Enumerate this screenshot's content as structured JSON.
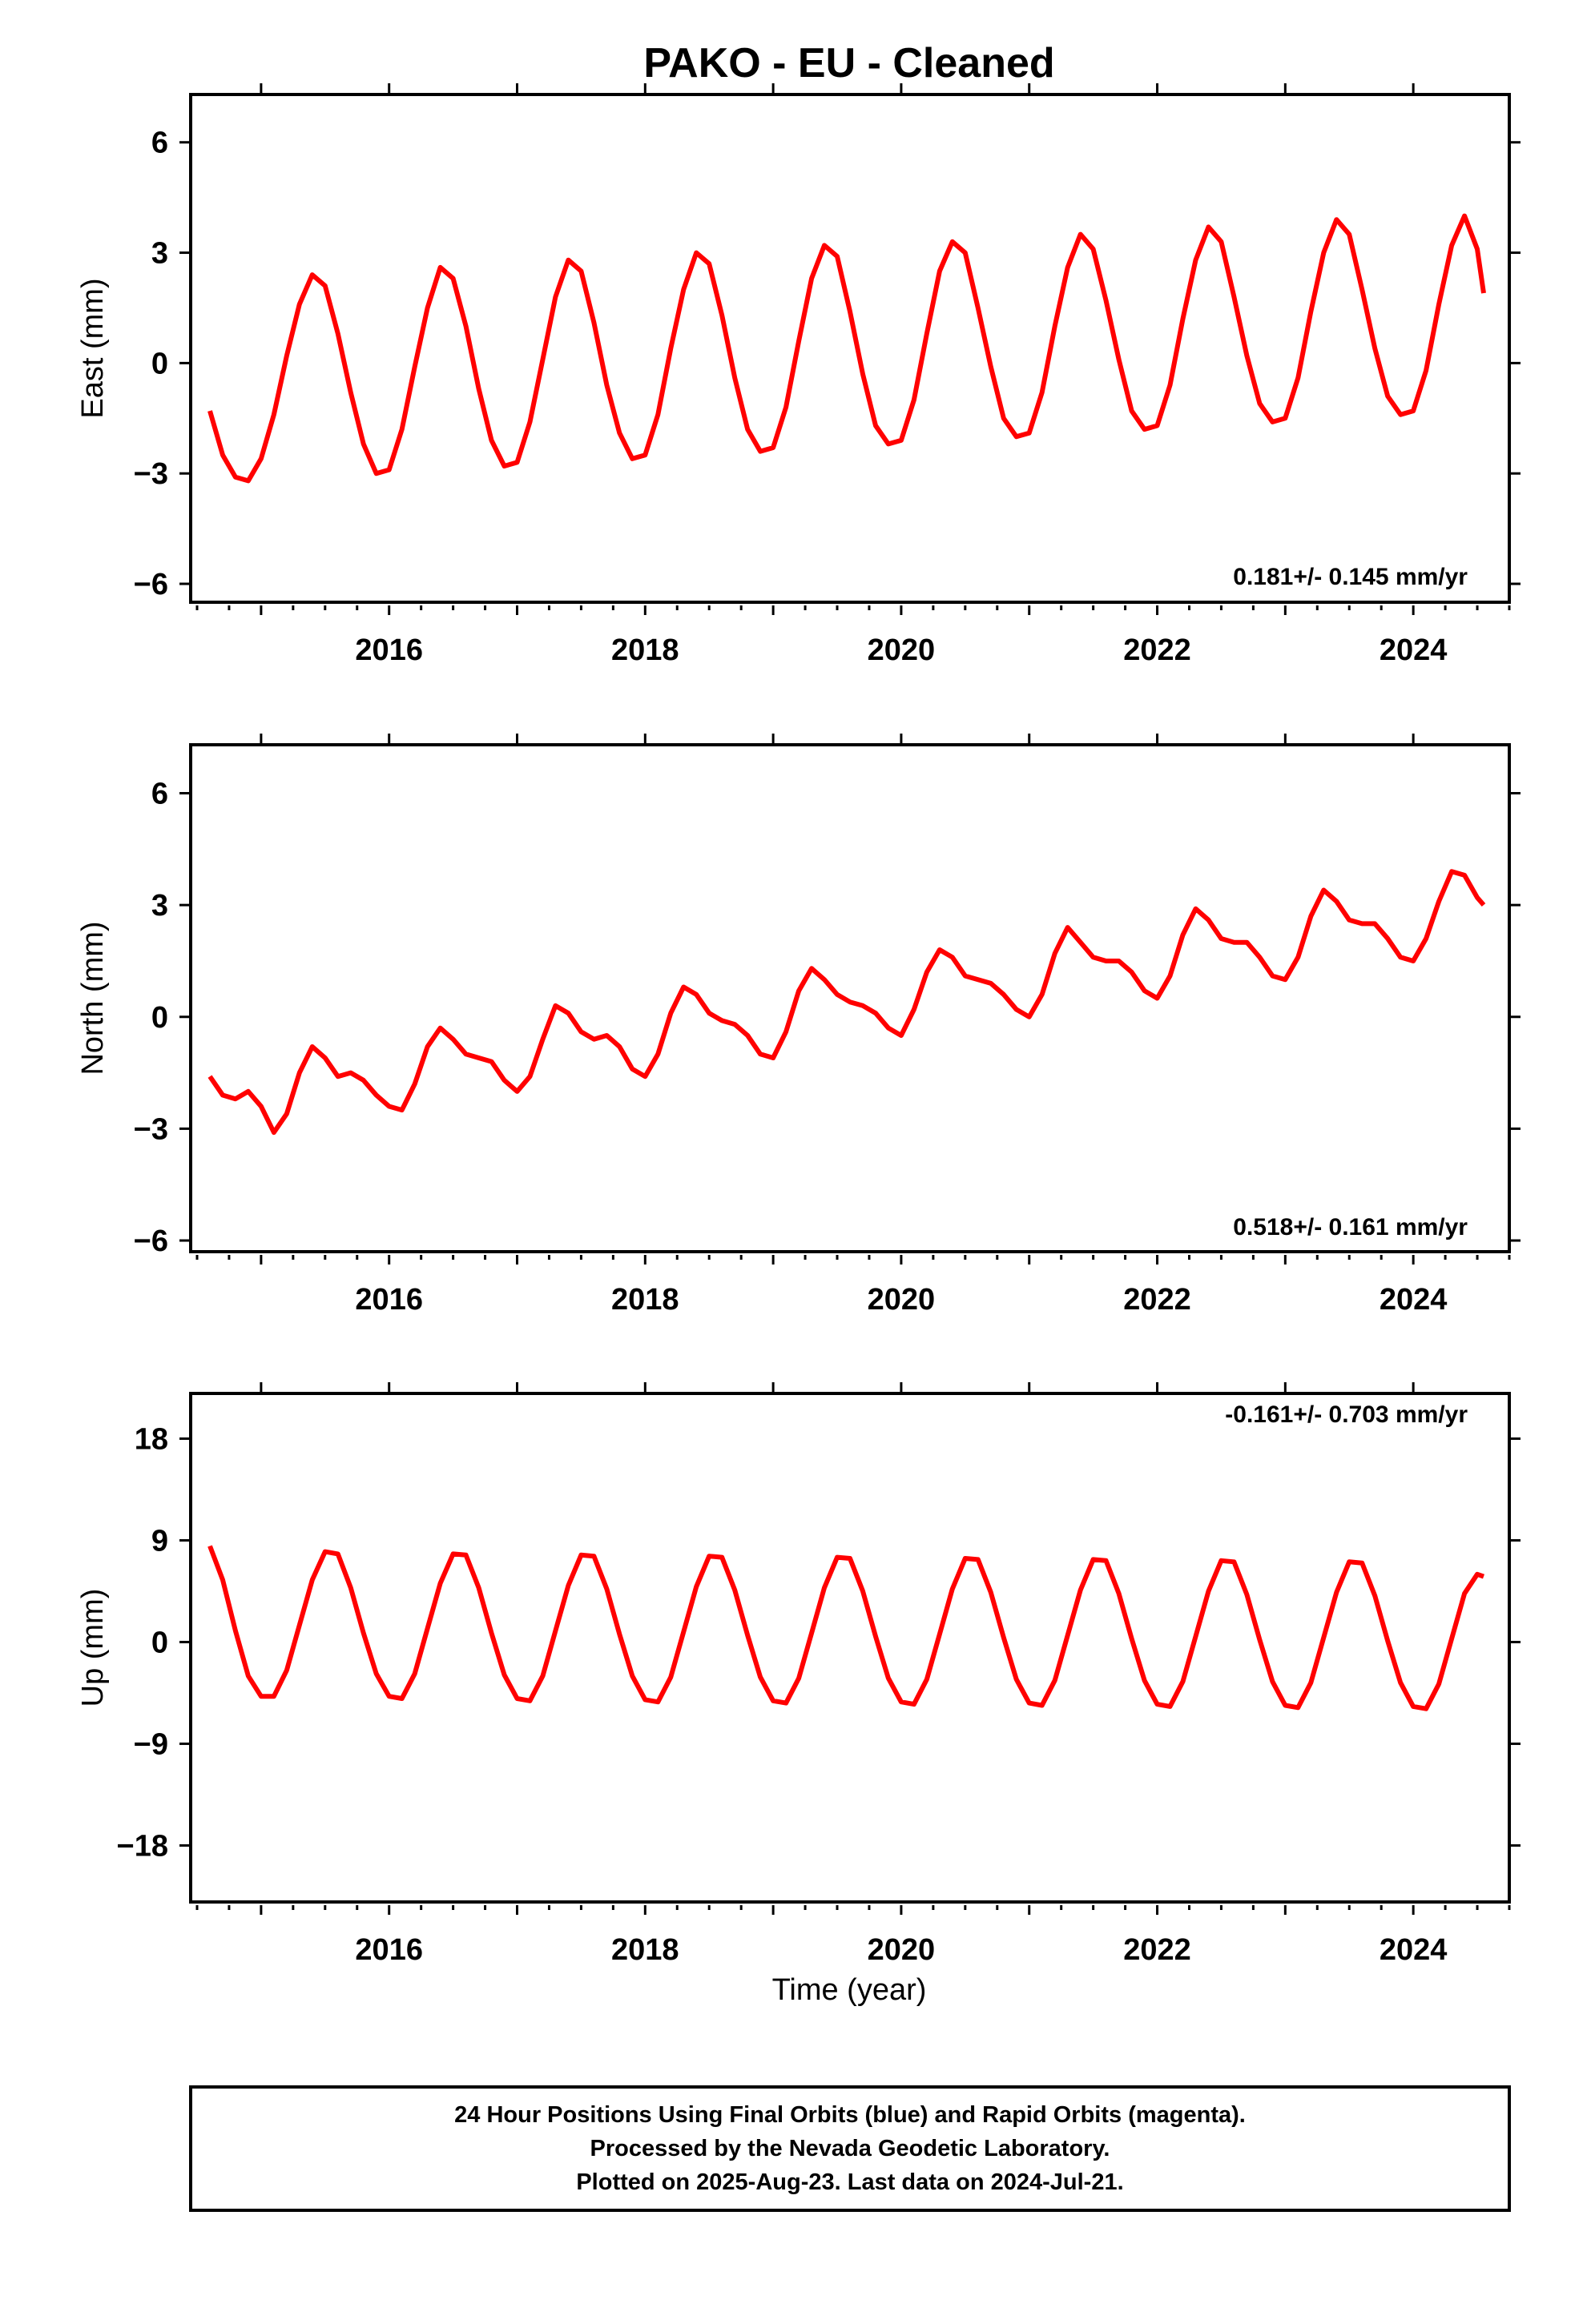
{
  "page": {
    "title": "PAKO  - EU - Cleaned",
    "xlabel": "Time (year)",
    "footer": [
      "24 Hour Positions Using Final Orbits (blue) and Rapid Orbits (magenta).",
      "Processed by the Nevada Geodetic Laboratory.",
      "Plotted on 2025-Aug-23. Last data on 2024-Jul-21."
    ]
  },
  "colors": {
    "points": "#0000ff",
    "model": "#ff0000",
    "frame": "#000000"
  },
  "chart_data": [
    {
      "type": "scatter",
      "component": "East",
      "ylabel": "East (mm)",
      "rate_label": "0.181+/- 0.145 mm/yr",
      "xlim": [
        2014.45,
        2024.75
      ],
      "ylim": [
        -6.5,
        7.3
      ],
      "yticks": [
        6,
        3,
        0,
        -3,
        -6
      ],
      "xticks": [
        2016,
        2018,
        2020,
        2022,
        2024
      ],
      "grid": false,
      "series": [
        {
          "role": "observations",
          "x": [],
          "y": []
        },
        {
          "role": "model fit",
          "x": [
            2014.6,
            2014.7,
            2014.8,
            2014.9,
            2015.0,
            2015.1,
            2015.2,
            2015.3,
            2015.4,
            2015.5,
            2015.6,
            2015.7,
            2015.8,
            2015.9,
            2016.0,
            2016.1,
            2016.2,
            2016.3,
            2016.4,
            2016.5,
            2016.6,
            2016.7,
            2016.8,
            2016.9,
            2017.0,
            2017.1,
            2017.2,
            2017.3,
            2017.4,
            2017.5,
            2017.6,
            2017.7,
            2017.8,
            2017.9,
            2018.0,
            2018.1,
            2018.2,
            2018.3,
            2018.4,
            2018.5,
            2018.6,
            2018.7,
            2018.8,
            2018.9,
            2019.0,
            2019.1,
            2019.2,
            2019.3,
            2019.4,
            2019.5,
            2019.6,
            2019.7,
            2019.8,
            2019.9,
            2020.0,
            2020.1,
            2020.2,
            2020.3,
            2020.4,
            2020.5,
            2020.6,
            2020.7,
            2020.8,
            2020.9,
            2021.0,
            2021.1,
            2021.2,
            2021.3,
            2021.4,
            2021.5,
            2021.6,
            2021.7,
            2021.8,
            2021.9,
            2022.0,
            2022.1,
            2022.2,
            2022.3,
            2022.4,
            2022.5,
            2022.6,
            2022.7,
            2022.8,
            2022.9,
            2023.0,
            2023.1,
            2023.2,
            2023.3,
            2023.4,
            2023.5,
            2023.6,
            2023.7,
            2023.8,
            2023.9,
            2024.0,
            2024.1,
            2024.2,
            2024.3,
            2024.4,
            2024.5,
            2024.55
          ],
          "y": [
            -1.3,
            -2.5,
            -3.1,
            -3.2,
            -2.6,
            -1.4,
            0.2,
            1.6,
            2.4,
            2.1,
            0.8,
            -0.8,
            -2.2,
            -3.0,
            -2.9,
            -1.8,
            -0.1,
            1.5,
            2.6,
            2.3,
            1.0,
            -0.7,
            -2.1,
            -2.8,
            -2.7,
            -1.6,
            0.1,
            1.8,
            2.8,
            2.5,
            1.1,
            -0.6,
            -1.9,
            -2.6,
            -2.5,
            -1.4,
            0.4,
            2.0,
            3.0,
            2.7,
            1.3,
            -0.4,
            -1.8,
            -2.4,
            -2.3,
            -1.2,
            0.6,
            2.3,
            3.2,
            2.9,
            1.4,
            -0.3,
            -1.7,
            -2.2,
            -2.1,
            -1.0,
            0.8,
            2.5,
            3.3,
            3.0,
            1.5,
            -0.1,
            -1.5,
            -2.0,
            -1.9,
            -0.8,
            1.0,
            2.6,
            3.5,
            3.1,
            1.7,
            0.1,
            -1.3,
            -1.8,
            -1.7,
            -0.6,
            1.2,
            2.8,
            3.7,
            3.3,
            1.8,
            0.2,
            -1.1,
            -1.6,
            -1.5,
            -0.4,
            1.4,
            3.0,
            3.9,
            3.5,
            2.0,
            0.4,
            -0.9,
            -1.4,
            -1.3,
            -0.2,
            1.6,
            3.2,
            4.0,
            3.1,
            1.9
          ]
        }
      ]
    },
    {
      "type": "scatter",
      "component": "North",
      "ylabel": "North (mm)",
      "rate_label": "0.518+/- 0.161 mm/yr",
      "xlim": [
        2014.45,
        2024.75
      ],
      "ylim": [
        -6.3,
        7.3
      ],
      "yticks": [
        6,
        3,
        0,
        -3,
        -6
      ],
      "xticks": [
        2016,
        2018,
        2020,
        2022,
        2024
      ],
      "grid": false,
      "series": [
        {
          "role": "observations",
          "x": [],
          "y": []
        },
        {
          "role": "model fit",
          "x": [
            2014.6,
            2014.7,
            2014.8,
            2014.9,
            2015.0,
            2015.1,
            2015.2,
            2015.3,
            2015.4,
            2015.5,
            2015.6,
            2015.7,
            2015.8,
            2015.9,
            2016.0,
            2016.1,
            2016.2,
            2016.3,
            2016.4,
            2016.5,
            2016.6,
            2016.7,
            2016.8,
            2016.9,
            2017.0,
            2017.1,
            2017.2,
            2017.3,
            2017.4,
            2017.5,
            2017.6,
            2017.7,
            2017.8,
            2017.9,
            2018.0,
            2018.1,
            2018.2,
            2018.3,
            2018.4,
            2018.5,
            2018.6,
            2018.7,
            2018.8,
            2018.9,
            2019.0,
            2019.1,
            2019.2,
            2019.3,
            2019.4,
            2019.5,
            2019.6,
            2019.7,
            2019.8,
            2019.9,
            2020.0,
            2020.1,
            2020.2,
            2020.3,
            2020.4,
            2020.5,
            2020.6,
            2020.7,
            2020.8,
            2020.9,
            2021.0,
            2021.1,
            2021.2,
            2021.3,
            2021.4,
            2021.5,
            2021.6,
            2021.7,
            2021.8,
            2021.9,
            2022.0,
            2022.1,
            2022.2,
            2022.3,
            2022.4,
            2022.5,
            2022.6,
            2022.7,
            2022.8,
            2022.9,
            2023.0,
            2023.1,
            2023.2,
            2023.3,
            2023.4,
            2023.5,
            2023.6,
            2023.7,
            2023.8,
            2023.9,
            2024.0,
            2024.1,
            2024.2,
            2024.3,
            2024.4,
            2024.5,
            2024.55
          ],
          "y": [
            -1.6,
            -2.1,
            -2.2,
            -2.0,
            -2.4,
            -3.1,
            -2.6,
            -1.5,
            -0.8,
            -1.1,
            -1.6,
            -1.5,
            -1.7,
            -2.1,
            -2.4,
            -2.5,
            -1.8,
            -0.8,
            -0.3,
            -0.6,
            -1.0,
            -1.1,
            -1.2,
            -1.7,
            -2.0,
            -1.6,
            -0.6,
            0.3,
            0.1,
            -0.4,
            -0.6,
            -0.5,
            -0.8,
            -1.4,
            -1.6,
            -1.0,
            0.1,
            0.8,
            0.6,
            0.1,
            -0.1,
            -0.2,
            -0.5,
            -1.0,
            -1.1,
            -0.4,
            0.7,
            1.3,
            1.0,
            0.6,
            0.4,
            0.3,
            0.1,
            -0.3,
            -0.5,
            0.2,
            1.2,
            1.8,
            1.6,
            1.1,
            1.0,
            0.9,
            0.6,
            0.2,
            0.0,
            0.6,
            1.7,
            2.4,
            2.0,
            1.6,
            1.5,
            1.5,
            1.2,
            0.7,
            0.5,
            1.1,
            2.2,
            2.9,
            2.6,
            2.1,
            2.0,
            2.0,
            1.6,
            1.1,
            1.0,
            1.6,
            2.7,
            3.4,
            3.1,
            2.6,
            2.5,
            2.5,
            2.1,
            1.6,
            1.5,
            2.1,
            3.1,
            3.9,
            3.8,
            3.2,
            3.0
          ]
        }
      ]
    },
    {
      "type": "scatter",
      "component": "Up",
      "ylabel": "Up (mm)",
      "rate_label": "-0.161+/- 0.703 mm/yr",
      "xlim": [
        2014.45,
        2024.75
      ],
      "ylim": [
        -23,
        22
      ],
      "yticks": [
        18,
        9,
        0,
        -9,
        -18
      ],
      "xticks": [
        2016,
        2018,
        2020,
        2022,
        2024
      ],
      "grid": false,
      "series": [
        {
          "role": "observations",
          "x": [],
          "y": []
        },
        {
          "role": "model fit",
          "x": [
            2014.6,
            2014.7,
            2014.8,
            2014.9,
            2015.0,
            2015.1,
            2015.2,
            2015.3,
            2015.4,
            2015.5,
            2015.6,
            2015.7,
            2015.8,
            2015.9,
            2016.0,
            2016.1,
            2016.2,
            2016.3,
            2016.4,
            2016.5,
            2016.6,
            2016.7,
            2016.8,
            2016.9,
            2017.0,
            2017.1,
            2017.2,
            2017.3,
            2017.4,
            2017.5,
            2017.6,
            2017.7,
            2017.8,
            2017.9,
            2018.0,
            2018.1,
            2018.2,
            2018.3,
            2018.4,
            2018.5,
            2018.6,
            2018.7,
            2018.8,
            2018.9,
            2019.0,
            2019.1,
            2019.2,
            2019.3,
            2019.4,
            2019.5,
            2019.6,
            2019.7,
            2019.8,
            2019.9,
            2020.0,
            2020.1,
            2020.2,
            2020.3,
            2020.4,
            2020.5,
            2020.6,
            2020.7,
            2020.8,
            2020.9,
            2021.0,
            2021.1,
            2021.2,
            2021.3,
            2021.4,
            2021.5,
            2021.6,
            2021.7,
            2021.8,
            2021.9,
            2022.0,
            2022.1,
            2022.2,
            2022.3,
            2022.4,
            2022.5,
            2022.6,
            2022.7,
            2022.8,
            2022.9,
            2023.0,
            2023.1,
            2023.2,
            2023.3,
            2023.4,
            2023.5,
            2023.6,
            2023.7,
            2023.8,
            2023.9,
            2024.0,
            2024.1,
            2024.2,
            2024.3,
            2024.4,
            2024.5,
            2024.55
          ],
          "y": [
            8.5,
            5.5,
            1.0,
            -3.0,
            -4.8,
            -4.8,
            -2.5,
            1.5,
            5.5,
            8.0,
            7.8,
            4.8,
            0.8,
            -2.8,
            -4.8,
            -5.0,
            -2.8,
            1.2,
            5.2,
            7.8,
            7.7,
            4.8,
            0.8,
            -2.9,
            -5.0,
            -5.2,
            -3.0,
            1.0,
            5.0,
            7.7,
            7.6,
            4.7,
            0.7,
            -3.0,
            -5.1,
            -5.3,
            -3.1,
            0.9,
            4.9,
            7.6,
            7.5,
            4.6,
            0.6,
            -3.1,
            -5.2,
            -5.4,
            -3.2,
            0.8,
            4.8,
            7.5,
            7.4,
            4.5,
            0.5,
            -3.2,
            -5.3,
            -5.5,
            -3.3,
            0.7,
            4.7,
            7.4,
            7.3,
            4.4,
            0.4,
            -3.3,
            -5.4,
            -5.6,
            -3.4,
            0.6,
            4.6,
            7.3,
            7.2,
            4.3,
            0.3,
            -3.4,
            -5.5,
            -5.7,
            -3.5,
            0.5,
            4.5,
            7.2,
            7.1,
            4.2,
            0.2,
            -3.5,
            -5.6,
            -5.8,
            -3.6,
            0.4,
            4.4,
            7.1,
            7.0,
            4.1,
            0.1,
            -3.6,
            -5.7,
            -5.9,
            -3.7,
            0.3,
            4.3,
            6.0,
            5.8
          ]
        }
      ]
    }
  ]
}
